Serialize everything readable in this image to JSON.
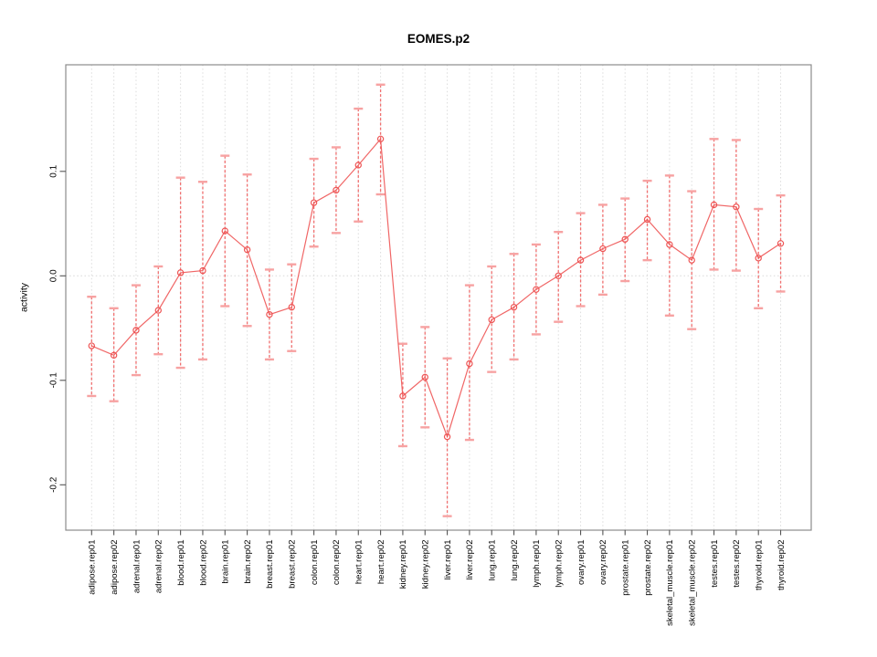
{
  "window": {
    "background": "#ffffff"
  },
  "chart_data": {
    "type": "line",
    "title": "EOMES.p2",
    "xlabel": "",
    "ylabel": "activity",
    "legend": "none",
    "grid": "vertical-dotted-gridlines-and-dotted-zero-line",
    "marker": "open-circle",
    "error_bars": "vertical-with-caps",
    "ylim": [
      -0.2465,
      0.1995
    ],
    "yticks": [
      0.1,
      0.0,
      -0.1,
      -0.2
    ],
    "categories": [
      "adipose.rep01",
      "adipose.rep02",
      "adrenal.rep01",
      "adrenal.rep02",
      "blood.rep01",
      "blood.rep02",
      "brain.rep01",
      "brain.rep02",
      "breast.rep01",
      "breast.rep02",
      "colon.rep01",
      "colon.rep02",
      "heart.rep01",
      "heart.rep02",
      "kidney.rep01",
      "kidney.rep02",
      "liver.rep01",
      "liver.rep02",
      "lung.rep01",
      "lung.rep02",
      "lymph.rep01",
      "lymph.rep02",
      "ovary.rep01",
      "ovary.rep02",
      "prostate.rep01",
      "prostate.rep02",
      "skeletal_muscle.rep01",
      "skeletal_muscle.rep02",
      "testes.rep01",
      "testes.rep02",
      "thyroid.rep01",
      "thyroid.rep02"
    ],
    "series": [
      {
        "name": "EOMES.p2",
        "values": [
          -0.067,
          -0.076,
          -0.052,
          -0.033,
          0.003,
          0.005,
          0.043,
          0.025,
          -0.037,
          -0.03,
          0.07,
          0.082,
          0.106,
          0.131,
          -0.115,
          -0.097,
          -0.154,
          -0.084,
          -0.042,
          -0.03,
          -0.013,
          0.0,
          0.015,
          0.026,
          0.035,
          0.054,
          0.03,
          0.015,
          0.068,
          0.066,
          0.017,
          0.031
        ],
        "error_low": [
          -0.115,
          -0.12,
          -0.095,
          -0.075,
          -0.088,
          -0.08,
          -0.029,
          -0.048,
          -0.08,
          -0.072,
          0.028,
          0.041,
          0.052,
          0.078,
          -0.163,
          -0.145,
          -0.23,
          -0.157,
          -0.092,
          -0.08,
          -0.056,
          -0.044,
          -0.029,
          -0.018,
          -0.005,
          0.015,
          -0.038,
          -0.051,
          0.006,
          0.005,
          -0.031,
          -0.015
        ],
        "error_high": [
          -0.02,
          -0.031,
          -0.009,
          0.009,
          0.094,
          0.09,
          0.115,
          0.097,
          0.006,
          0.011,
          0.112,
          0.123,
          0.16,
          0.183,
          -0.065,
          -0.049,
          -0.079,
          -0.009,
          0.009,
          0.021,
          0.03,
          0.042,
          0.06,
          0.068,
          0.074,
          0.091,
          0.096,
          0.081,
          0.131,
          0.13,
          0.064,
          0.077
        ]
      }
    ],
    "colors": {
      "line": "#ee5555",
      "marker": "#ee5555",
      "stem": "#f07070",
      "cap": "#f7a2a2",
      "grid": "#dcdcdc",
      "zero_line": "#d8d8d8",
      "frame": "#8c8c8c",
      "tick": "#555555",
      "text": "#000000",
      "background": "#ffffff"
    }
  }
}
